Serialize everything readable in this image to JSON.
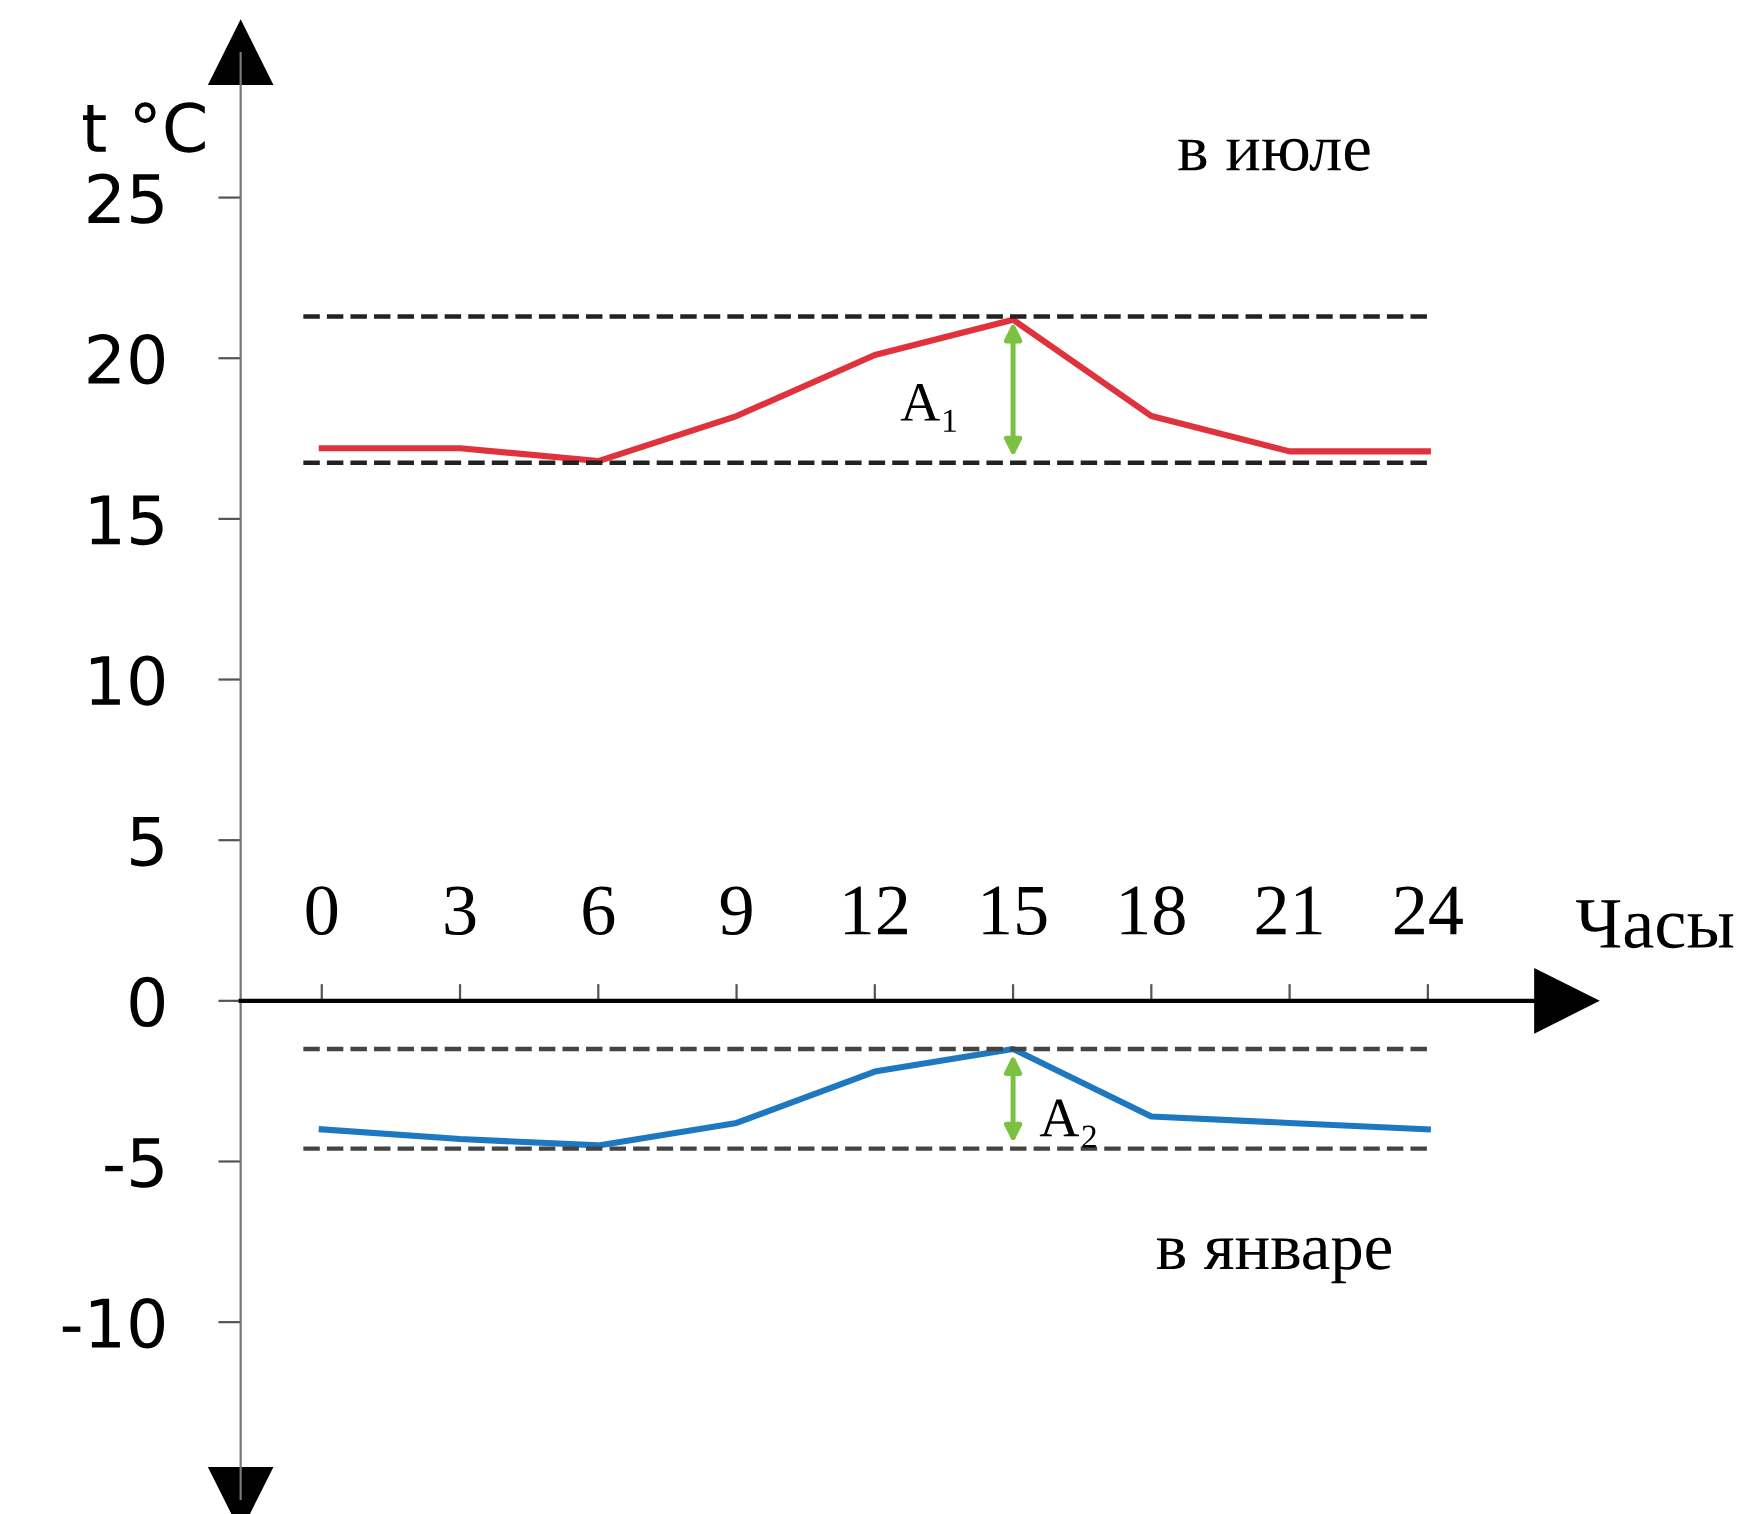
{
  "chart_data": {
    "type": "line",
    "xlabel": "Часы",
    "ylabel": "t °C",
    "x": [
      0,
      3,
      6,
      9,
      12,
      15,
      18,
      21,
      24
    ],
    "series": [
      {
        "color": "#e0323c",
        "values": [
          17.2,
          17.2,
          16.8,
          18.2,
          20.1,
          21.2,
          18.2,
          17.1,
          17.1
        ]
      },
      {
        "color": "#1e78c0",
        "values": [
          -4.0,
          -4.3,
          -4.5,
          -3.8,
          -2.2,
          -1.5,
          -3.6,
          -3.8,
          -4.0
        ]
      }
    ],
    "ref_lines": [
      {
        "axis": "y",
        "value": 21.3,
        "color": "#222222",
        "line_style": "dashed"
      },
      {
        "axis": "y",
        "value": 16.75,
        "color": "#222222",
        "line_style": "dashed"
      },
      {
        "axis": "y",
        "value": -1.5,
        "color": "#444444",
        "line_style": "dashed"
      },
      {
        "axis": "y",
        "value": -4.6,
        "color": "#444444",
        "line_style": "dashed"
      }
    ],
    "annotations": [
      "в июле",
      "A₁",
      "A₂",
      "в январе"
    ],
    "xlim": [
      -1.76,
      27
    ],
    "ylim": [
      -15.5,
      29.5
    ],
    "xticks": [
      0,
      3,
      6,
      9,
      12,
      15,
      18,
      21,
      24
    ],
    "yticks": [
      -10,
      -5,
      0,
      5,
      10,
      15,
      20,
      25
    ],
    "grid": false,
    "legend": false,
    "marker": "none",
    "line_style": "solid"
  }
}
